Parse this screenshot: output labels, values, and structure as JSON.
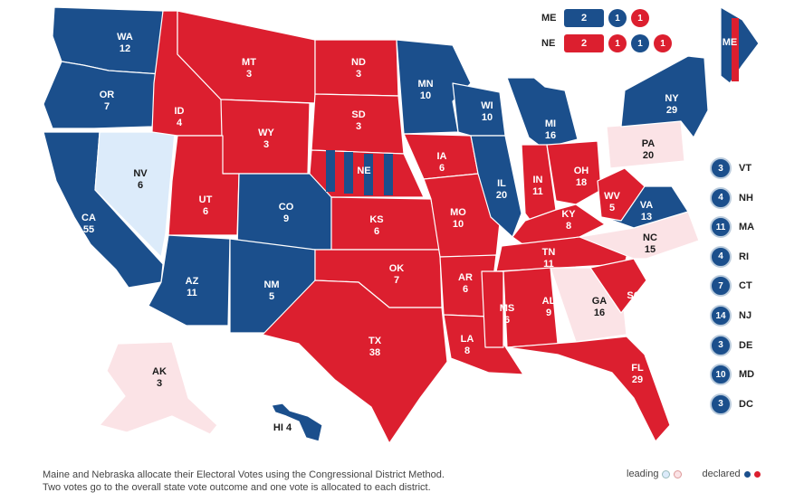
{
  "colors": {
    "dem": "#1b4f8c",
    "rep": "#dc1f2f",
    "lean_dem": "#dcebfa",
    "lean_rep": "#fbe3e6"
  },
  "states": [
    {
      "id": "WA",
      "label": "WA",
      "ev": "12",
      "party": "dem"
    },
    {
      "id": "OR",
      "label": "OR",
      "ev": "7",
      "party": "dem"
    },
    {
      "id": "CA",
      "label": "CA",
      "ev": "55",
      "party": "dem"
    },
    {
      "id": "NV",
      "label": "NV",
      "ev": "6",
      "party": "lean_dem"
    },
    {
      "id": "ID",
      "label": "ID",
      "ev": "4",
      "party": "rep"
    },
    {
      "id": "MT",
      "label": "MT",
      "ev": "3",
      "party": "rep"
    },
    {
      "id": "WY",
      "label": "WY",
      "ev": "3",
      "party": "rep"
    },
    {
      "id": "UT",
      "label": "UT",
      "ev": "6",
      "party": "rep"
    },
    {
      "id": "CO",
      "label": "CO",
      "ev": "9",
      "party": "dem"
    },
    {
      "id": "AZ",
      "label": "AZ",
      "ev": "11",
      "party": "dem"
    },
    {
      "id": "NM",
      "label": "NM",
      "ev": "5",
      "party": "dem"
    },
    {
      "id": "ND",
      "label": "ND",
      "ev": "3",
      "party": "rep"
    },
    {
      "id": "SD",
      "label": "SD",
      "ev": "3",
      "party": "rep"
    },
    {
      "id": "NE",
      "label": "NE",
      "ev": "",
      "party": "rep"
    },
    {
      "id": "KS",
      "label": "KS",
      "ev": "6",
      "party": "rep"
    },
    {
      "id": "OK",
      "label": "OK",
      "ev": "7",
      "party": "rep"
    },
    {
      "id": "TX",
      "label": "TX",
      "ev": "38",
      "party": "rep"
    },
    {
      "id": "MN",
      "label": "MN",
      "ev": "10",
      "party": "dem"
    },
    {
      "id": "IA",
      "label": "IA",
      "ev": "6",
      "party": "rep"
    },
    {
      "id": "MO",
      "label": "MO",
      "ev": "10",
      "party": "rep"
    },
    {
      "id": "AR",
      "label": "AR",
      "ev": "6",
      "party": "rep"
    },
    {
      "id": "LA",
      "label": "LA",
      "ev": "8",
      "party": "rep"
    },
    {
      "id": "WI",
      "label": "WI",
      "ev": "10",
      "party": "dem"
    },
    {
      "id": "IL",
      "label": "IL",
      "ev": "20",
      "party": "dem"
    },
    {
      "id": "MI",
      "label": "MI",
      "ev": "16",
      "party": "dem"
    },
    {
      "id": "IN",
      "label": "IN",
      "ev": "11",
      "party": "rep"
    },
    {
      "id": "OH",
      "label": "OH",
      "ev": "18",
      "party": "rep"
    },
    {
      "id": "KY",
      "label": "KY",
      "ev": "8",
      "party": "rep"
    },
    {
      "id": "TN",
      "label": "TN",
      "ev": "11",
      "party": "rep"
    },
    {
      "id": "MS",
      "label": "MS",
      "ev": "6",
      "party": "rep"
    },
    {
      "id": "AL",
      "label": "AL",
      "ev": "9",
      "party": "rep"
    },
    {
      "id": "GA",
      "label": "GA",
      "ev": "16",
      "party": "lean_rep"
    },
    {
      "id": "FL",
      "label": "FL",
      "ev": "29",
      "party": "rep"
    },
    {
      "id": "SC",
      "label": "SC",
      "ev": "9",
      "party": "rep"
    },
    {
      "id": "NC",
      "label": "NC",
      "ev": "15",
      "party": "lean_rep"
    },
    {
      "id": "VA",
      "label": "VA",
      "ev": "13",
      "party": "dem"
    },
    {
      "id": "WV",
      "label": "WV",
      "ev": "5",
      "party": "rep"
    },
    {
      "id": "PA",
      "label": "PA",
      "ev": "20",
      "party": "lean_rep"
    },
    {
      "id": "NY",
      "label": "NY",
      "ev": "29",
      "party": "dem"
    },
    {
      "id": "ME",
      "label": "ME",
      "ev": "",
      "party": "dem"
    },
    {
      "id": "AK",
      "label": "AK",
      "ev": "3",
      "party": "lean_rep"
    },
    {
      "id": "HI",
      "label": "HI 4",
      "ev": "",
      "party": "dem"
    }
  ],
  "districts": {
    "ME": {
      "name": "ME",
      "overall": "2",
      "overall_party": "dem",
      "items": [
        {
          "v": "1",
          "party": "dem"
        },
        {
          "v": "1",
          "party": "rep"
        }
      ]
    },
    "NE": {
      "name": "NE",
      "overall": "2",
      "overall_party": "rep",
      "items": [
        {
          "v": "1",
          "party": "rep"
        },
        {
          "v": "1",
          "party": "dem"
        },
        {
          "v": "1",
          "party": "rep"
        }
      ]
    }
  },
  "small_states": [
    {
      "id": "VT",
      "ev": "3"
    },
    {
      "id": "NH",
      "ev": "4"
    },
    {
      "id": "MA",
      "ev": "11"
    },
    {
      "id": "RI",
      "ev": "4"
    },
    {
      "id": "CT",
      "ev": "7"
    },
    {
      "id": "NJ",
      "ev": "14"
    },
    {
      "id": "DE",
      "ev": "3"
    },
    {
      "id": "MD",
      "ev": "10"
    },
    {
      "id": "DC",
      "ev": "3"
    }
  ],
  "footnote": {
    "line1": "Maine and Nebraska allocate their Electoral Votes using the Congressional District Method.",
    "line2": "Two votes go to the overall state vote outcome and one vote is allocated to each district."
  },
  "legend": {
    "leading": "leading",
    "declared": "declared"
  }
}
